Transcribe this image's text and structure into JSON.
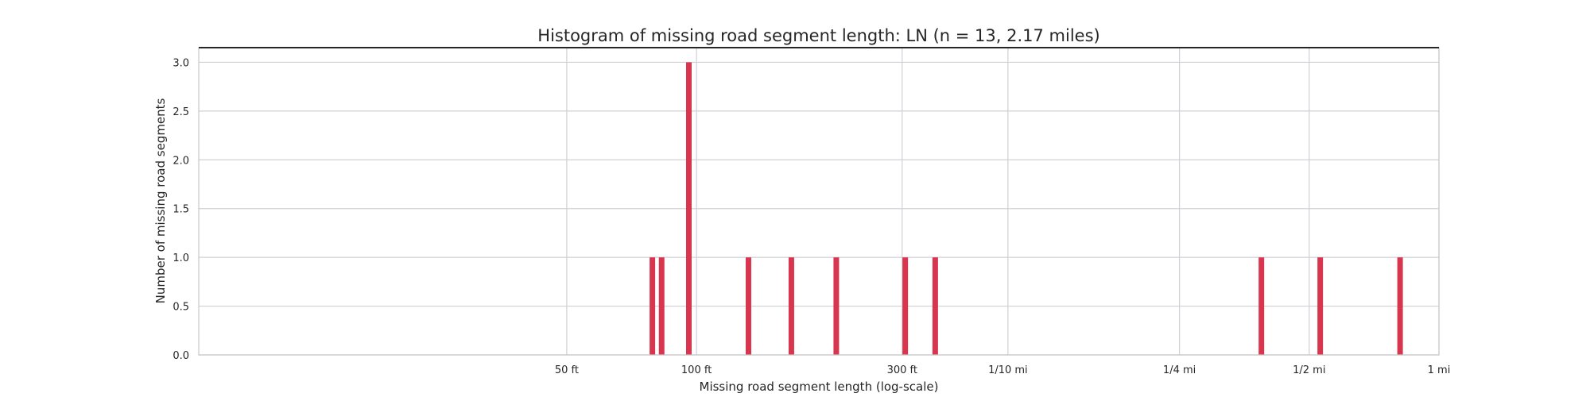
{
  "chart_data": {
    "type": "bar",
    "title": "Histogram of missing road segment length: LN (n = 13, 2.17 miles)",
    "xlabel": "Missing road segment  length (log-scale)",
    "ylabel": "Number of missing road segments",
    "x_scale": "log",
    "x_unit": "ft",
    "xlim": [
      7,
      5280
    ],
    "ylim": [
      0,
      3.15
    ],
    "grid": true,
    "color": "#d7364e",
    "xticks": [
      {
        "value": 50,
        "label": "50 ft"
      },
      {
        "value": 100,
        "label": "100 ft"
      },
      {
        "value": 300,
        "label": "300 ft"
      },
      {
        "value": 528,
        "label": "1/10 mi"
      },
      {
        "value": 1320,
        "label": "1/4 mi"
      },
      {
        "value": 2640,
        "label": "1/2 mi"
      },
      {
        "value": 5280,
        "label": "1 mi"
      }
    ],
    "yticks": [
      {
        "value": 0,
        "label": "0.0"
      },
      {
        "value": 0.5,
        "label": "0.5"
      },
      {
        "value": 1,
        "label": "1.0"
      },
      {
        "value": 1.5,
        "label": "1.5"
      },
      {
        "value": 2,
        "label": "2.0"
      },
      {
        "value": 2.5,
        "label": "2.5"
      },
      {
        "value": 3,
        "label": "3.0"
      }
    ],
    "bins": [
      {
        "x": 79,
        "count": 1
      },
      {
        "x": 83,
        "count": 1
      },
      {
        "x": 96,
        "count": 3
      },
      {
        "x": 132,
        "count": 1
      },
      {
        "x": 166,
        "count": 1
      },
      {
        "x": 211,
        "count": 1
      },
      {
        "x": 305,
        "count": 1
      },
      {
        "x": 358,
        "count": 1
      },
      {
        "x": 2045,
        "count": 1
      },
      {
        "x": 2800,
        "count": 1
      },
      {
        "x": 4290,
        "count": 1
      }
    ]
  }
}
